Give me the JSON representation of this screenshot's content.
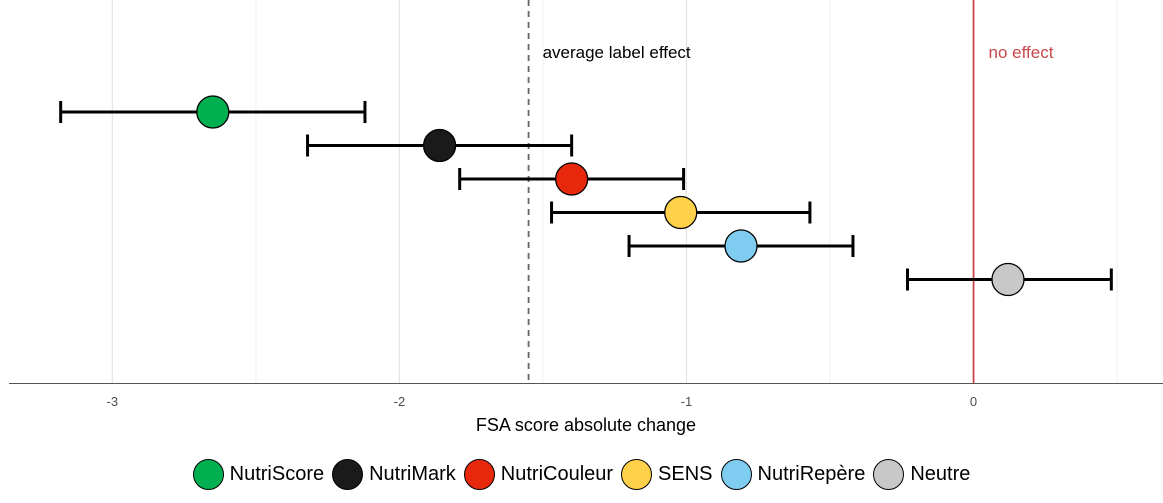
{
  "chart_data": {
    "type": "scatter",
    "variant": "point-with-error-bars",
    "xlabel": "FSA score absolute change",
    "xlim": [
      -3.36,
      0.66
    ],
    "xticks": [
      -3,
      -2,
      -1,
      0
    ],
    "tick_labels": [
      "-3",
      "-2",
      "-1",
      "0"
    ],
    "grid": true,
    "legend_position": "bottom",
    "reference_lines": {
      "average": {
        "x": -1.55,
        "label": "average label effect",
        "style": "dashed",
        "color": "#666666"
      },
      "zero": {
        "x": 0,
        "label": "no effect",
        "style": "solid",
        "color": "#c8474b"
      }
    },
    "series": [
      {
        "name": "NutriScore",
        "color": "#00b050",
        "x": -2.65,
        "low": -3.18,
        "high": -2.12
      },
      {
        "name": "NutriMark",
        "color": "#1a1a1a",
        "x": -1.86,
        "low": -2.32,
        "high": -1.4
      },
      {
        "name": "NutriCouleur",
        "color": "#e8280c",
        "x": -1.4,
        "low": -1.79,
        "high": -1.01
      },
      {
        "name": "SENS",
        "color": "#ffd04a",
        "x": -1.02,
        "low": -1.47,
        "high": -0.57
      },
      {
        "name": "NutriRepère",
        "color": "#7ecdf0",
        "x": -0.81,
        "low": -1.2,
        "high": -0.42
      },
      {
        "name": "Neutre",
        "color": "#c8c8c8",
        "x": 0.12,
        "low": -0.23,
        "high": 0.48
      }
    ]
  }
}
